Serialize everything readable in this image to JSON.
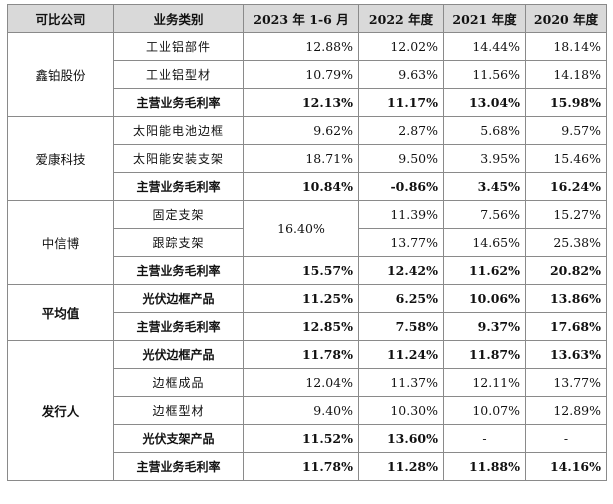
{
  "headers": [
    "可比公司",
    "业务类别",
    "2023 年 1-6 月",
    "2022 年度",
    "2021 年度",
    "2020 年度"
  ],
  "rows": {
    "r0": {
      "company": "鑫铂股份",
      "cat": "工业铝部件",
      "v": [
        "12.88%",
        "12.02%",
        "14.44%",
        "18.14%"
      ]
    },
    "r1": {
      "cat": "工业铝型材",
      "v": [
        "10.79%",
        "9.63%",
        "11.56%",
        "14.18%"
      ]
    },
    "r2": {
      "cat": "主营业务毛利率",
      "v": [
        "12.13%",
        "11.17%",
        "13.04%",
        "15.98%"
      ]
    },
    "r3": {
      "company": "爱康科技",
      "cat": "太阳能电池边框",
      "v": [
        "9.62%",
        "2.87%",
        "5.68%",
        "9.57%"
      ]
    },
    "r4": {
      "cat": "太阳能安装支架",
      "v": [
        "18.71%",
        "9.50%",
        "3.95%",
        "15.46%"
      ]
    },
    "r5": {
      "cat": "主营业务毛利率",
      "v": [
        "10.84%",
        "-0.86%",
        "3.45%",
        "16.24%"
      ]
    },
    "r6": {
      "company": "中信博",
      "cat": "固定支架",
      "merged": "16.40%",
      "v": [
        "11.39%",
        "7.56%",
        "15.27%"
      ]
    },
    "r7": {
      "cat": "跟踪支架",
      "v": [
        "13.77%",
        "14.65%",
        "25.38%"
      ]
    },
    "r8": {
      "cat": "主营业务毛利率",
      "v": [
        "15.57%",
        "12.42%",
        "11.62%",
        "20.82%"
      ]
    },
    "r9": {
      "company": "平均值",
      "cat": "光伏边框产品",
      "v": [
        "11.25%",
        "6.25%",
        "10.06%",
        "13.86%"
      ]
    },
    "r10": {
      "cat": "主营业务毛利率",
      "v": [
        "12.85%",
        "7.58%",
        "9.37%",
        "17.68%"
      ]
    },
    "r11": {
      "company": "发行人",
      "cat": "光伏边框产品",
      "v": [
        "11.78%",
        "11.24%",
        "11.87%",
        "13.63%"
      ]
    },
    "r12": {
      "cat": "边框成品",
      "v": [
        "12.04%",
        "11.37%",
        "12.11%",
        "13.77%"
      ]
    },
    "r13": {
      "cat": "边框型材",
      "v": [
        "9.40%",
        "10.30%",
        "10.07%",
        "12.89%"
      ]
    },
    "r14": {
      "cat": "光伏支架产品",
      "v": [
        "11.52%",
        "13.60%",
        "-",
        "-"
      ]
    },
    "r15": {
      "cat": "主营业务毛利率",
      "v": [
        "11.78%",
        "11.28%",
        "11.88%",
        "14.16%"
      ]
    }
  }
}
